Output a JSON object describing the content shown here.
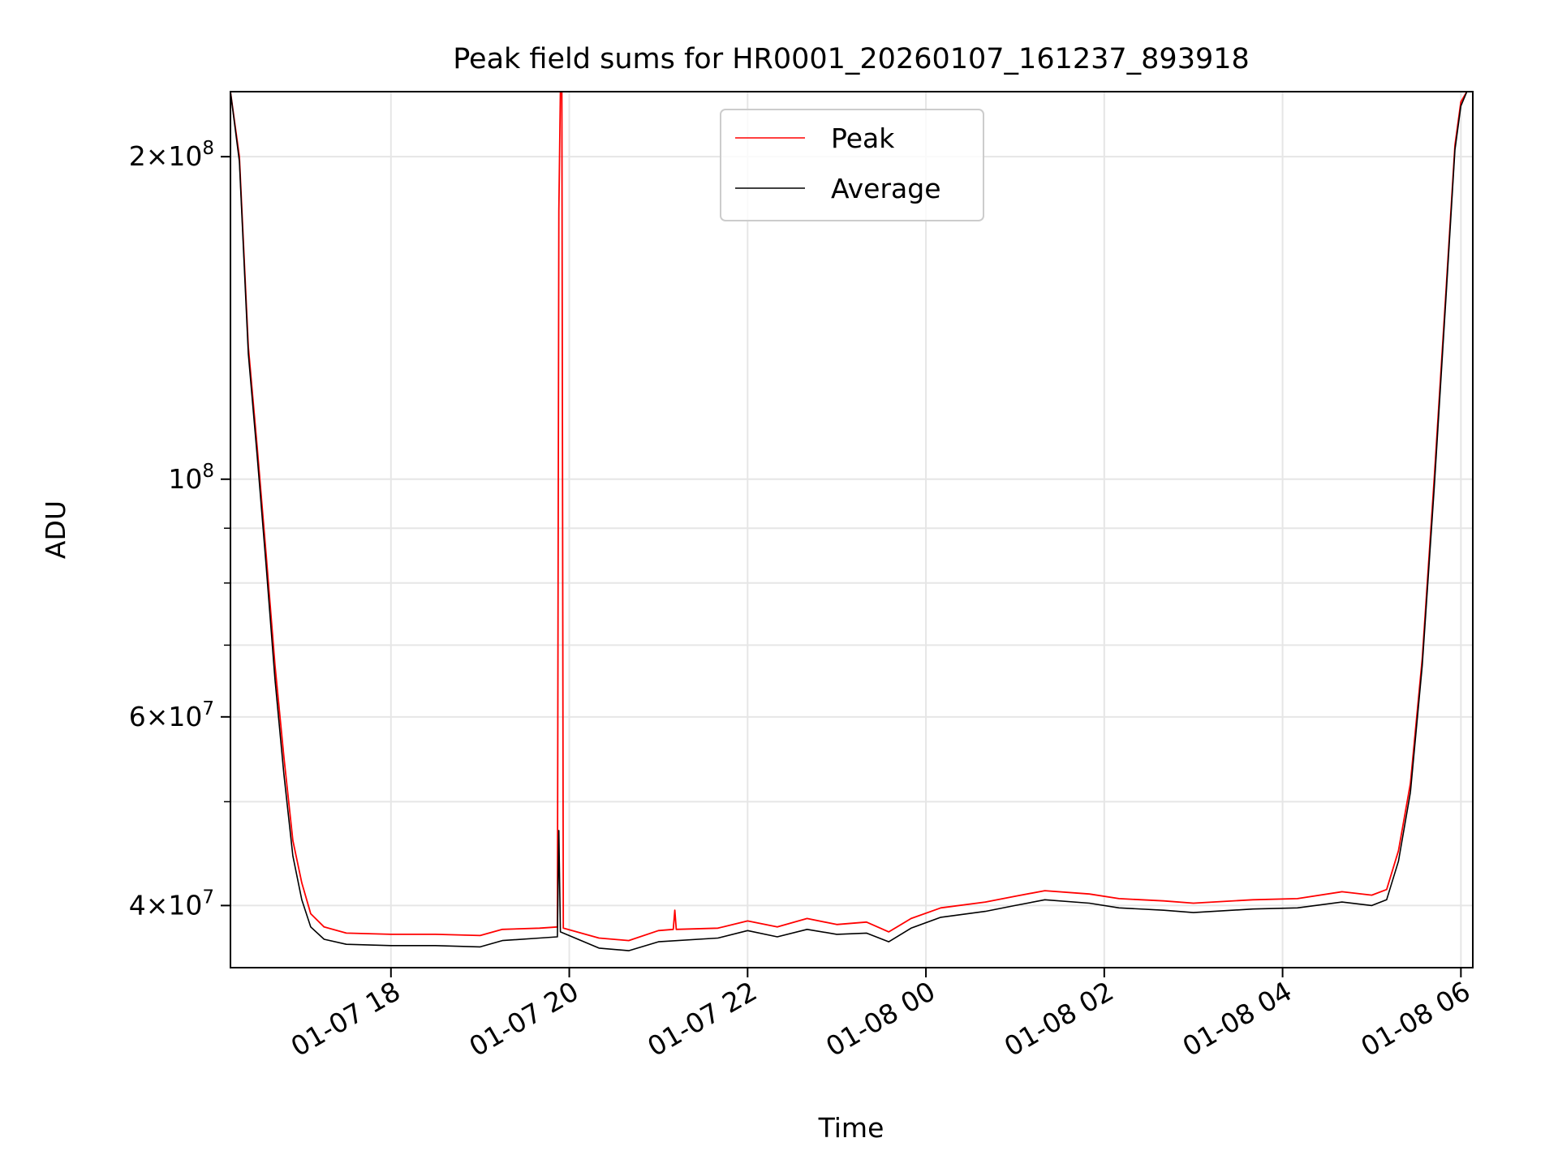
{
  "chart_data": {
    "type": "line",
    "title": "Peak field sums for HR0001_20260107_161237_893918",
    "xlabel": "Time",
    "ylabel": "ADU",
    "yscale": "log",
    "ylim": [
      35000000,
      230000000
    ],
    "xlim": [
      "2026-01-07 16:12",
      "2026-01-08 06:08"
    ],
    "grid": true,
    "legend": {
      "placement": "top-center"
    },
    "x_ticks": [
      {
        "value": "2026-01-07 18:00",
        "label": "01-07 18"
      },
      {
        "value": "2026-01-07 20:00",
        "label": "01-07 20"
      },
      {
        "value": "2026-01-07 22:00",
        "label": "01-07 22"
      },
      {
        "value": "2026-01-08 00:00",
        "label": "01-08 00"
      },
      {
        "value": "2026-01-08 02:00",
        "label": "01-08 02"
      },
      {
        "value": "2026-01-08 04:00",
        "label": "01-08 04"
      },
      {
        "value": "2026-01-08 06:00",
        "label": "01-08 06"
      }
    ],
    "y_ticks": [
      {
        "value": 40000000,
        "label": [
          "4×10",
          "7"
        ]
      },
      {
        "value": 60000000,
        "label": [
          "6×10",
          "7"
        ]
      },
      {
        "value": 100000000,
        "label": [
          "10",
          "8"
        ]
      },
      {
        "value": 200000000,
        "label": [
          "2×10",
          "8"
        ]
      }
    ],
    "y_minor_ticks": [
      50000000,
      70000000,
      80000000,
      90000000
    ],
    "series": [
      {
        "name": "Peak",
        "color": "#ff0000",
        "points": [
          [
            "2026-01-07 16:12",
            230000000
          ],
          [
            "2026-01-07 16:18",
            200000000
          ],
          [
            "2026-01-07 16:24",
            133000000
          ],
          [
            "2026-01-07 16:30",
            107000000
          ],
          [
            "2026-01-07 16:36",
            85000000
          ],
          [
            "2026-01-07 16:42",
            67000000
          ],
          [
            "2026-01-07 16:48",
            55000000
          ],
          [
            "2026-01-07 16:54",
            46000000
          ],
          [
            "2026-01-07 17:00",
            42000000
          ],
          [
            "2026-01-07 17:06",
            39300000
          ],
          [
            "2026-01-07 17:15",
            38200000
          ],
          [
            "2026-01-07 17:30",
            37700000
          ],
          [
            "2026-01-07 18:00",
            37600000
          ],
          [
            "2026-01-07 18:30",
            37600000
          ],
          [
            "2026-01-07 19:00",
            37500000
          ],
          [
            "2026-01-07 19:15",
            38000000
          ],
          [
            "2026-01-07 19:40",
            38100000
          ],
          [
            "2026-01-07 19:52",
            38200000
          ],
          [
            "2026-01-07 19:53",
            178000000
          ],
          [
            "2026-01-07 19:54",
            230000000
          ],
          [
            "2026-01-07 19:55",
            230000000
          ],
          [
            "2026-01-07 19:56",
            38100000
          ],
          [
            "2026-01-07 20:20",
            37300000
          ],
          [
            "2026-01-07 20:40",
            37100000
          ],
          [
            "2026-01-07 21:00",
            37900000
          ],
          [
            "2026-01-07 21:10",
            38000000
          ],
          [
            "2026-01-07 21:11",
            39600000
          ],
          [
            "2026-01-07 21:12",
            38000000
          ],
          [
            "2026-01-07 21:40",
            38100000
          ],
          [
            "2026-01-07 22:00",
            38700000
          ],
          [
            "2026-01-07 22:20",
            38200000
          ],
          [
            "2026-01-07 22:40",
            38900000
          ],
          [
            "2026-01-07 23:00",
            38400000
          ],
          [
            "2026-01-07 23:20",
            38600000
          ],
          [
            "2026-01-07 23:35",
            37800000
          ],
          [
            "2026-01-07 23:50",
            38900000
          ],
          [
            "2026-01-08 00:10",
            39800000
          ],
          [
            "2026-01-08 00:40",
            40300000
          ],
          [
            "2026-01-08 01:00",
            40800000
          ],
          [
            "2026-01-08 01:20",
            41300000
          ],
          [
            "2026-01-08 01:50",
            41000000
          ],
          [
            "2026-01-08 02:10",
            40600000
          ],
          [
            "2026-01-08 02:40",
            40400000
          ],
          [
            "2026-01-08 03:00",
            40200000
          ],
          [
            "2026-01-08 03:40",
            40500000
          ],
          [
            "2026-01-08 04:10",
            40600000
          ],
          [
            "2026-01-08 04:40",
            41200000
          ],
          [
            "2026-01-08 05:00",
            40900000
          ],
          [
            "2026-01-08 05:10",
            41400000
          ],
          [
            "2026-01-08 05:18",
            45000000
          ],
          [
            "2026-01-08 05:26",
            52000000
          ],
          [
            "2026-01-08 05:34",
            68000000
          ],
          [
            "2026-01-08 05:42",
            100000000
          ],
          [
            "2026-01-08 05:50",
            150000000
          ],
          [
            "2026-01-08 05:56",
            205000000
          ],
          [
            "2026-01-08 06:00",
            225000000
          ],
          [
            "2026-01-08 06:04",
            230000000
          ]
        ]
      },
      {
        "name": "Average",
        "color": "#000000",
        "points": [
          [
            "2026-01-07 16:12",
            230000000
          ],
          [
            "2026-01-07 16:18",
            198000000
          ],
          [
            "2026-01-07 16:24",
            131000000
          ],
          [
            "2026-01-07 16:30",
            105000000
          ],
          [
            "2026-01-07 16:36",
            83000000
          ],
          [
            "2026-01-07 16:42",
            65000000
          ],
          [
            "2026-01-07 16:48",
            53000000
          ],
          [
            "2026-01-07 16:54",
            44500000
          ],
          [
            "2026-01-07 17:00",
            40500000
          ],
          [
            "2026-01-07 17:06",
            38200000
          ],
          [
            "2026-01-07 17:15",
            37200000
          ],
          [
            "2026-01-07 17:30",
            36800000
          ],
          [
            "2026-01-07 18:00",
            36700000
          ],
          [
            "2026-01-07 18:30",
            36700000
          ],
          [
            "2026-01-07 19:00",
            36600000
          ],
          [
            "2026-01-07 19:15",
            37100000
          ],
          [
            "2026-01-07 19:40",
            37300000
          ],
          [
            "2026-01-07 19:52",
            37400000
          ],
          [
            "2026-01-07 19:53",
            47000000
          ],
          [
            "2026-01-07 19:54",
            37800000
          ],
          [
            "2026-01-07 20:20",
            36500000
          ],
          [
            "2026-01-07 20:40",
            36300000
          ],
          [
            "2026-01-07 21:00",
            37000000
          ],
          [
            "2026-01-07 21:40",
            37300000
          ],
          [
            "2026-01-07 22:00",
            37900000
          ],
          [
            "2026-01-07 22:20",
            37400000
          ],
          [
            "2026-01-07 22:40",
            38000000
          ],
          [
            "2026-01-07 23:00",
            37600000
          ],
          [
            "2026-01-07 23:20",
            37700000
          ],
          [
            "2026-01-07 23:35",
            37000000
          ],
          [
            "2026-01-07 23:50",
            38100000
          ],
          [
            "2026-01-08 00:10",
            39000000
          ],
          [
            "2026-01-08 00:40",
            39500000
          ],
          [
            "2026-01-08 01:00",
            40000000
          ],
          [
            "2026-01-08 01:20",
            40500000
          ],
          [
            "2026-01-08 01:50",
            40200000
          ],
          [
            "2026-01-08 02:10",
            39800000
          ],
          [
            "2026-01-08 02:40",
            39600000
          ],
          [
            "2026-01-08 03:00",
            39400000
          ],
          [
            "2026-01-08 03:40",
            39700000
          ],
          [
            "2026-01-08 04:10",
            39800000
          ],
          [
            "2026-01-08 04:40",
            40300000
          ],
          [
            "2026-01-08 05:00",
            40000000
          ],
          [
            "2026-01-08 05:10",
            40500000
          ],
          [
            "2026-01-08 05:18",
            44000000
          ],
          [
            "2026-01-08 05:26",
            51000000
          ],
          [
            "2026-01-08 05:34",
            67000000
          ],
          [
            "2026-01-08 05:42",
            98000000
          ],
          [
            "2026-01-08 05:50",
            148000000
          ],
          [
            "2026-01-08 05:56",
            203000000
          ],
          [
            "2026-01-08 06:00",
            223000000
          ],
          [
            "2026-01-08 06:04",
            230000000
          ]
        ]
      }
    ]
  }
}
